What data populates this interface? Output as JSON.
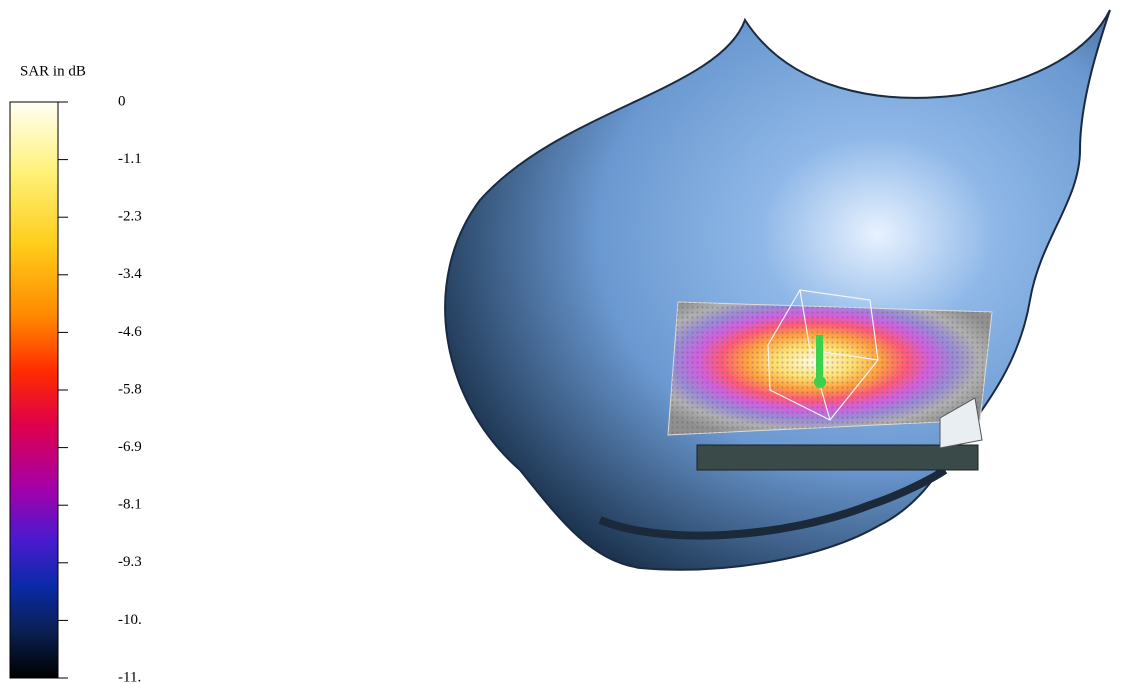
{
  "legend": {
    "title": "SAR in dB",
    "labels": [
      "0",
      "-1.1",
      "-2.3",
      "-3.4",
      "-4.6",
      "-5.8",
      "-6.9",
      "-8.1",
      "-9.3",
      "-10.",
      "-11."
    ]
  }
}
